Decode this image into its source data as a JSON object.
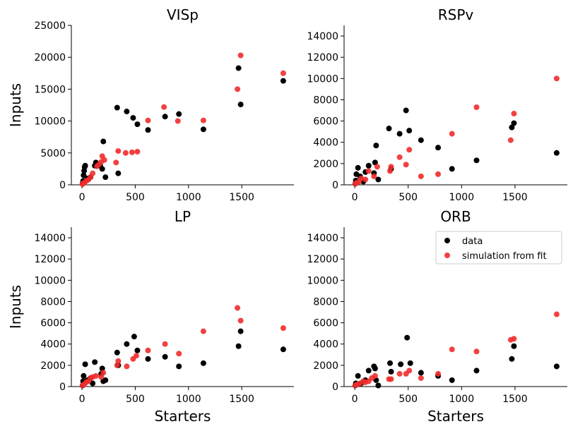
{
  "colors": {
    "data": "#000000",
    "simulation": "#f02c2c",
    "axis": "#000000"
  },
  "chart_data": [
    {
      "type": "scatter",
      "title": "VISp",
      "xlabel": "",
      "ylabel": "Inputs",
      "xlim": [
        -100,
        1990
      ],
      "ylim": [
        0,
        25000
      ],
      "xticks": [
        0,
        500,
        1000,
        1500
      ],
      "xtick_labels": [
        "0",
        "500",
        "1000",
        "1500"
      ],
      "yticks": [
        0,
        5000,
        10000,
        15000,
        20000,
        25000
      ],
      "ytick_labels": [
        "0",
        "5000",
        "10000",
        "15000",
        "20000",
        "25000"
      ],
      "series": [
        {
          "name": "data",
          "points": [
            [
              5,
              200
            ],
            [
              10,
              600
            ],
            [
              15,
              1500
            ],
            [
              20,
              2200
            ],
            [
              25,
              2800
            ],
            [
              30,
              3000
            ],
            [
              50,
              1000
            ],
            [
              80,
              1200
            ],
            [
              120,
              3000
            ],
            [
              130,
              3500
            ],
            [
              170,
              3000
            ],
            [
              190,
              2500
            ],
            [
              200,
              6800
            ],
            [
              220,
              1200
            ],
            [
              330,
              12100
            ],
            [
              340,
              1800
            ],
            [
              420,
              11500
            ],
            [
              480,
              10500
            ],
            [
              520,
              9500
            ],
            [
              620,
              8600
            ],
            [
              780,
              10700
            ],
            [
              910,
              11100
            ],
            [
              1140,
              8700
            ],
            [
              1470,
              18300
            ],
            [
              1490,
              12600
            ],
            [
              1890,
              16300
            ]
          ]
        },
        {
          "name": "simulation from fit",
          "points": [
            [
              5,
              100
            ],
            [
              10,
              200
            ],
            [
              20,
              300
            ],
            [
              40,
              600
            ],
            [
              60,
              800
            ],
            [
              80,
              1200
            ],
            [
              100,
              1800
            ],
            [
              140,
              2900
            ],
            [
              160,
              3200
            ],
            [
              180,
              3600
            ],
            [
              190,
              4500
            ],
            [
              210,
              3900
            ],
            [
              320,
              3500
            ],
            [
              340,
              5300
            ],
            [
              410,
              5000
            ],
            [
              470,
              5100
            ],
            [
              520,
              5200
            ],
            [
              620,
              10100
            ],
            [
              770,
              12200
            ],
            [
              900,
              10000
            ],
            [
              1140,
              10100
            ],
            [
              1460,
              15000
            ],
            [
              1490,
              20300
            ],
            [
              1890,
              17500
            ]
          ]
        }
      ]
    },
    {
      "type": "scatter",
      "title": "RSPv",
      "xlabel": "",
      "ylabel": "",
      "xlim": [
        -100,
        1990
      ],
      "ylim": [
        0,
        15000
      ],
      "xticks": [
        0,
        500,
        1000,
        1500
      ],
      "xtick_labels": [
        "0",
        "500",
        "1000",
        "1500"
      ],
      "yticks": [
        0,
        2000,
        4000,
        6000,
        8000,
        10000,
        12000,
        14000
      ],
      "ytick_labels": [
        "0",
        "2000",
        "4000",
        "6000",
        "8000",
        "10000",
        "12000",
        "14000"
      ],
      "series": [
        {
          "name": "data",
          "points": [
            [
              5,
              100
            ],
            [
              10,
              400
            ],
            [
              15,
              1000
            ],
            [
              30,
              1600
            ],
            [
              50,
              800
            ],
            [
              80,
              300
            ],
            [
              100,
              1200
            ],
            [
              130,
              1800
            ],
            [
              180,
              1100
            ],
            [
              190,
              2100
            ],
            [
              200,
              3700
            ],
            [
              220,
              500
            ],
            [
              320,
              5300
            ],
            [
              340,
              1500
            ],
            [
              420,
              4800
            ],
            [
              480,
              7000
            ],
            [
              510,
              5100
            ],
            [
              620,
              4200
            ],
            [
              780,
              3500
            ],
            [
              910,
              1500
            ],
            [
              1140,
              2300
            ],
            [
              1470,
              5400
            ],
            [
              1490,
              5800
            ],
            [
              1890,
              3000
            ]
          ]
        },
        {
          "name": "simulation from fit",
          "points": [
            [
              5,
              100
            ],
            [
              20,
              200
            ],
            [
              40,
              300
            ],
            [
              60,
              600
            ],
            [
              100,
              500
            ],
            [
              130,
              1300
            ],
            [
              180,
              800
            ],
            [
              210,
              1700
            ],
            [
              330,
              1300
            ],
            [
              340,
              1700
            ],
            [
              420,
              2600
            ],
            [
              480,
              1900
            ],
            [
              510,
              3300
            ],
            [
              620,
              800
            ],
            [
              780,
              1000
            ],
            [
              910,
              4800
            ],
            [
              1140,
              7300
            ],
            [
              1460,
              4200
            ],
            [
              1490,
              6700
            ],
            [
              1890,
              10000
            ]
          ]
        }
      ]
    },
    {
      "type": "scatter",
      "title": "LP",
      "xlabel": "Starters",
      "ylabel": "Inputs",
      "xlim": [
        -100,
        1990
      ],
      "ylim": [
        0,
        15000
      ],
      "xticks": [
        0,
        500,
        1000,
        1500
      ],
      "xtick_labels": [
        "0",
        "500",
        "1000",
        "1500"
      ],
      "yticks": [
        0,
        2000,
        4000,
        6000,
        8000,
        10000,
        12000,
        14000
      ],
      "ytick_labels": [
        "0",
        "2000",
        "4000",
        "6000",
        "8000",
        "10000",
        "12000",
        "14000"
      ],
      "series": [
        {
          "name": "data",
          "points": [
            [
              5,
              100
            ],
            [
              10,
              500
            ],
            [
              15,
              1000
            ],
            [
              30,
              2100
            ],
            [
              50,
              600
            ],
            [
              80,
              800
            ],
            [
              100,
              300
            ],
            [
              120,
              2300
            ],
            [
              180,
              1200
            ],
            [
              190,
              1700
            ],
            [
              200,
              500
            ],
            [
              220,
              600
            ],
            [
              330,
              3200
            ],
            [
              340,
              2000
            ],
            [
              420,
              4000
            ],
            [
              490,
              4700
            ],
            [
              520,
              3400
            ],
            [
              620,
              2600
            ],
            [
              780,
              2800
            ],
            [
              910,
              1900
            ],
            [
              1140,
              2200
            ],
            [
              1470,
              3800
            ],
            [
              1490,
              5200
            ],
            [
              1890,
              3500
            ]
          ]
        },
        {
          "name": "simulation from fit",
          "points": [
            [
              5,
              100
            ],
            [
              20,
              200
            ],
            [
              40,
              400
            ],
            [
              60,
              500
            ],
            [
              80,
              800
            ],
            [
              100,
              900
            ],
            [
              130,
              1000
            ],
            [
              180,
              900
            ],
            [
              200,
              1300
            ],
            [
              330,
              2000
            ],
            [
              340,
              2400
            ],
            [
              420,
              1900
            ],
            [
              480,
              2600
            ],
            [
              510,
              2900
            ],
            [
              620,
              3400
            ],
            [
              780,
              4000
            ],
            [
              910,
              3100
            ],
            [
              1140,
              5200
            ],
            [
              1460,
              7400
            ],
            [
              1490,
              6200
            ],
            [
              1890,
              5500
            ]
          ]
        }
      ]
    },
    {
      "type": "scatter",
      "title": "ORB",
      "xlabel": "Starters",
      "ylabel": "",
      "xlim": [
        -100,
        1990
      ],
      "ylim": [
        0,
        15000
      ],
      "xticks": [
        0,
        500,
        1000,
        1500
      ],
      "xtick_labels": [
        "0",
        "500",
        "1000",
        "1500"
      ],
      "yticks": [
        0,
        2000,
        4000,
        6000,
        8000,
        10000,
        12000,
        14000
      ],
      "ytick_labels": [
        "0",
        "2000",
        "4000",
        "6000",
        "8000",
        "10000",
        "12000",
        "14000"
      ],
      "legend": {
        "placement": "upper right",
        "entries": [
          "data",
          "simulation from fit"
        ]
      },
      "series": [
        {
          "name": "data",
          "points": [
            [
              5,
              100
            ],
            [
              10,
              300
            ],
            [
              20,
              200
            ],
            [
              30,
              1000
            ],
            [
              60,
              300
            ],
            [
              100,
              600
            ],
            [
              130,
              1500
            ],
            [
              180,
              1900
            ],
            [
              190,
              1700
            ],
            [
              200,
              600
            ],
            [
              220,
              100
            ],
            [
              330,
              2200
            ],
            [
              340,
              1400
            ],
            [
              430,
              2100
            ],
            [
              490,
              4600
            ],
            [
              520,
              2200
            ],
            [
              620,
              1300
            ],
            [
              780,
              1000
            ],
            [
              910,
              600
            ],
            [
              1140,
              1500
            ],
            [
              1470,
              2600
            ],
            [
              1490,
              3800
            ],
            [
              1890,
              1900
            ]
          ]
        },
        {
          "name": "simulation from fit",
          "points": [
            [
              5,
              100
            ],
            [
              20,
              200
            ],
            [
              50,
              300
            ],
            [
              80,
              500
            ],
            [
              100,
              400
            ],
            [
              130,
              500
            ],
            [
              160,
              800
            ],
            [
              190,
              1000
            ],
            [
              320,
              700
            ],
            [
              340,
              700
            ],
            [
              420,
              1200
            ],
            [
              480,
              1200
            ],
            [
              510,
              1500
            ],
            [
              620,
              800
            ],
            [
              780,
              1200
            ],
            [
              910,
              3500
            ],
            [
              1140,
              3300
            ],
            [
              1460,
              4400
            ],
            [
              1490,
              4500
            ],
            [
              1890,
              6800
            ]
          ]
        }
      ]
    }
  ]
}
